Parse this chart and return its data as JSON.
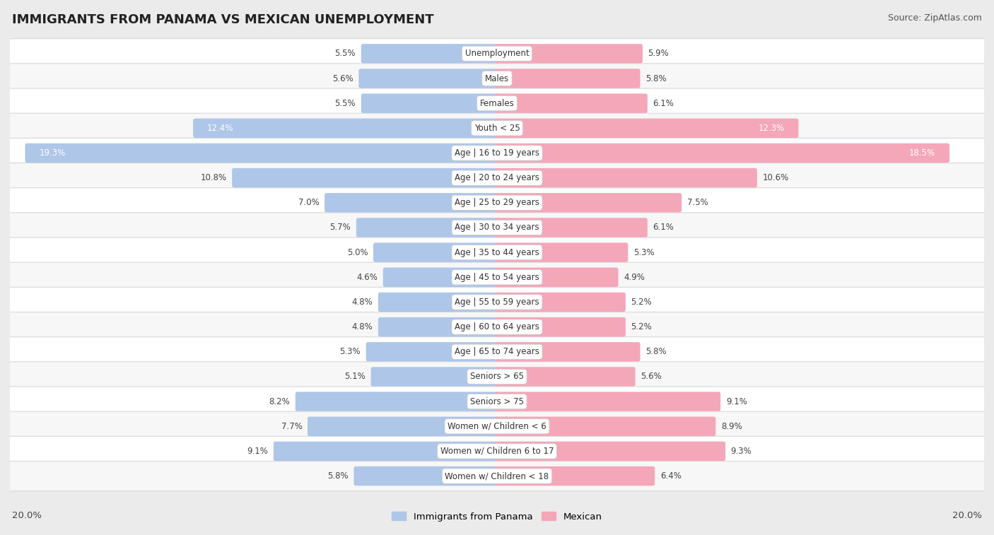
{
  "title": "IMMIGRANTS FROM PANAMA VS MEXICAN UNEMPLOYMENT",
  "source": "Source: ZipAtlas.com",
  "categories": [
    "Unemployment",
    "Males",
    "Females",
    "Youth < 25",
    "Age | 16 to 19 years",
    "Age | 20 to 24 years",
    "Age | 25 to 29 years",
    "Age | 30 to 34 years",
    "Age | 35 to 44 years",
    "Age | 45 to 54 years",
    "Age | 55 to 59 years",
    "Age | 60 to 64 years",
    "Age | 65 to 74 years",
    "Seniors > 65",
    "Seniors > 75",
    "Women w/ Children < 6",
    "Women w/ Children 6 to 17",
    "Women w/ Children < 18"
  ],
  "panama_values": [
    5.5,
    5.6,
    5.5,
    12.4,
    19.3,
    10.8,
    7.0,
    5.7,
    5.0,
    4.6,
    4.8,
    4.8,
    5.3,
    5.1,
    8.2,
    7.7,
    9.1,
    5.8
  ],
  "mexican_values": [
    5.9,
    5.8,
    6.1,
    12.3,
    18.5,
    10.6,
    7.5,
    6.1,
    5.3,
    4.9,
    5.2,
    5.2,
    5.8,
    5.6,
    9.1,
    8.9,
    9.3,
    6.4
  ],
  "panama_color": "#aec6e8",
  "mexican_color": "#f4a7b9",
  "bar_height": 0.62,
  "xlim": 20.0,
  "bg_color": "#ebebeb",
  "row_bg_color": "#f7f7f7",
  "row_alt_color": "#ffffff",
  "legend_panama": "Immigrants from Panama",
  "legend_mexican": "Mexican",
  "axis_label_left": "20.0%",
  "axis_label_right": "20.0%",
  "title_fontsize": 13,
  "source_fontsize": 9,
  "label_fontsize": 8.5,
  "value_fontsize": 8.5
}
